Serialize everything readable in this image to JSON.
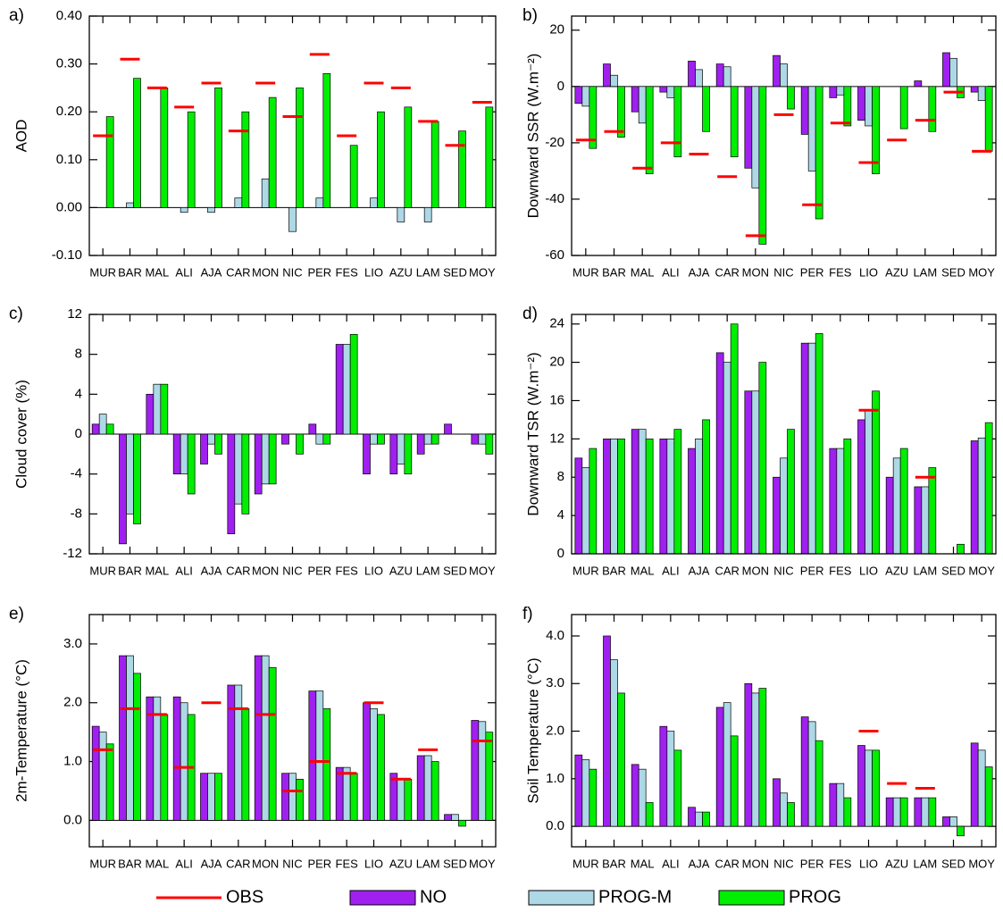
{
  "chart_data": [
    {
      "type": "bar",
      "label": "a)",
      "y_label": "AOD",
      "categories": [
        "MUR",
        "BAR",
        "MAL",
        "ALI",
        "AJA",
        "CAR",
        "MON",
        "NIC",
        "PER",
        "FES",
        "LIO",
        "AZU",
        "LAM",
        "SED",
        "MOY"
      ],
      "ylim": [
        -0.1,
        0.4
      ],
      "yticks": [
        {
          "value": -0.1,
          "label": "-0.10"
        },
        {
          "value": 0,
          "label": "0.00"
        },
        {
          "value": 0.1,
          "label": "0.10"
        },
        {
          "value": 0.2,
          "label": "0.20"
        },
        {
          "value": 0.3,
          "label": "0.30"
        },
        {
          "value": 0.4,
          "label": "0.40"
        }
      ],
      "series": [
        {
          "name": "OBS",
          "color": "#ff0000",
          "mark": "dash",
          "values": [
            0.15,
            0.31,
            0.25,
            0.21,
            0.26,
            0.16,
            0.26,
            0.19,
            0.32,
            0.15,
            0.26,
            0.25,
            0.18,
            0.13,
            0.22
          ]
        },
        {
          "name": "NO",
          "color": "#a020f0",
          "mark": "bar",
          "values": [
            null,
            null,
            null,
            null,
            null,
            null,
            null,
            null,
            null,
            null,
            null,
            null,
            null,
            null,
            null
          ]
        },
        {
          "name": "PROG-M",
          "color": "#add8e6",
          "mark": "bar",
          "values": [
            null,
            0.01,
            null,
            -0.01,
            -0.01,
            0.02,
            0.06,
            -0.05,
            0.02,
            null,
            0.02,
            -0.03,
            -0.03,
            null,
            null
          ]
        },
        {
          "name": "PROG",
          "color": "#00ee00",
          "mark": "bar",
          "values": [
            0.19,
            0.27,
            0.25,
            0.2,
            0.25,
            0.2,
            0.23,
            0.25,
            0.28,
            0.13,
            0.2,
            0.21,
            0.18,
            0.16,
            0.21
          ]
        }
      ]
    },
    {
      "type": "bar",
      "label": "b)",
      "y_label": "Downward SSR (W.m⁻²)",
      "categories": [
        "MUR",
        "BAR",
        "MAL",
        "ALI",
        "AJA",
        "CAR",
        "MON",
        "NIC",
        "PER",
        "FES",
        "LIO",
        "AZU",
        "LAM",
        "SED",
        "MOY"
      ],
      "ylim": [
        -60,
        25
      ],
      "yticks": [
        -60,
        -40,
        -20,
        0,
        20
      ],
      "series": [
        {
          "name": "OBS",
          "color": "#ff0000",
          "mark": "dash",
          "values": [
            -19,
            -16,
            -29,
            -20,
            -24,
            -32,
            -53,
            -10,
            -42,
            -13,
            -27,
            -19,
            -12,
            -2,
            -23
          ]
        },
        {
          "name": "NO",
          "color": "#a020f0",
          "mark": "bar",
          "values": [
            -6,
            8,
            -9,
            -2,
            9,
            8,
            -29,
            11,
            -17,
            -4,
            -12,
            null,
            2,
            12,
            -2
          ]
        },
        {
          "name": "PROG-M",
          "color": "#add8e6",
          "mark": "bar",
          "values": [
            -7,
            4,
            -13,
            -4,
            6,
            7,
            -36,
            8,
            -30,
            -3,
            -14,
            null,
            null,
            10,
            -5
          ]
        },
        {
          "name": "PROG",
          "color": "#00ee00",
          "mark": "bar",
          "values": [
            -22,
            -18,
            -31,
            -25,
            -16,
            -25,
            -56,
            -8,
            -47,
            -14,
            -31,
            -15,
            -16,
            -4,
            -23
          ]
        }
      ]
    },
    {
      "type": "bar",
      "label": "c)",
      "y_label": "Cloud cover (%)",
      "categories": [
        "MUR",
        "BAR",
        "MAL",
        "ALI",
        "AJA",
        "CAR",
        "MON",
        "NIC",
        "PER",
        "FES",
        "LIO",
        "AZU",
        "LAM",
        "SED",
        "MOY"
      ],
      "ylim": [
        -12,
        12
      ],
      "yticks": [
        -12,
        -8,
        -4,
        0,
        4,
        8,
        12
      ],
      "series": [
        {
          "name": "NO",
          "color": "#a020f0",
          "mark": "bar",
          "values": [
            1,
            -11,
            4,
            -4,
            -3,
            -10,
            -6,
            -1,
            1,
            9,
            -4,
            -4,
            -2,
            1,
            -1
          ]
        },
        {
          "name": "PROG-M",
          "color": "#add8e6",
          "mark": "bar",
          "values": [
            2,
            -8,
            5,
            -4,
            -1,
            -7,
            -5,
            null,
            -1,
            9,
            -1,
            -3,
            -1,
            null,
            -1
          ]
        },
        {
          "name": "PROG",
          "color": "#00ee00",
          "mark": "bar",
          "values": [
            1,
            -9,
            5,
            -6,
            -2,
            -8,
            -5,
            -2,
            -1,
            10,
            -1,
            -4,
            -1,
            null,
            -2
          ]
        }
      ]
    },
    {
      "type": "bar",
      "label": "d)",
      "y_label": "Downward TSR (W.m⁻²)",
      "categories": [
        "MUR",
        "BAR",
        "MAL",
        "ALI",
        "AJA",
        "CAR",
        "MON",
        "NIC",
        "PER",
        "FES",
        "LIO",
        "AZU",
        "LAM",
        "SED",
        "MOY"
      ],
      "ylim": [
        0,
        25
      ],
      "yticks": [
        0,
        4,
        8,
        12,
        16,
        20,
        24
      ],
      "series": [
        {
          "name": "OBS",
          "color": "#ff0000",
          "mark": "dash",
          "values": [
            null,
            null,
            null,
            null,
            null,
            null,
            null,
            null,
            null,
            null,
            15,
            null,
            8,
            null,
            null
          ]
        },
        {
          "name": "NO",
          "color": "#a020f0",
          "mark": "bar",
          "values": [
            10,
            12,
            13,
            12,
            11,
            21,
            17,
            8,
            22,
            11,
            14,
            8,
            7,
            null,
            11.8
          ]
        },
        {
          "name": "PROG-M",
          "color": "#add8e6",
          "mark": "bar",
          "values": [
            9,
            12,
            13,
            12,
            12,
            20,
            17,
            10,
            22,
            11,
            15,
            10,
            7,
            null,
            12.1
          ]
        },
        {
          "name": "PROG",
          "color": "#00ee00",
          "mark": "bar",
          "values": [
            11,
            12,
            12,
            13,
            14,
            24,
            20,
            13,
            23,
            12,
            17,
            11,
            9,
            1,
            13.7
          ]
        }
      ]
    },
    {
      "type": "bar",
      "label": "e)",
      "y_label": "2m-Temperature (°C)",
      "categories": [
        "MUR",
        "BAR",
        "MAL",
        "ALI",
        "AJA",
        "CAR",
        "MON",
        "NIC",
        "PER",
        "FES",
        "LIO",
        "AZU",
        "LAM",
        "SED",
        "MOY"
      ],
      "ylim": [
        -0.45,
        3.5
      ],
      "yticks": [
        {
          "value": 0,
          "label": "0.0"
        },
        {
          "value": 1,
          "label": "1.0"
        },
        {
          "value": 2,
          "label": "2.0"
        },
        {
          "value": 3,
          "label": "3.0"
        }
      ],
      "series": [
        {
          "name": "OBS",
          "color": "#ff0000",
          "mark": "dash",
          "values": [
            1.2,
            1.9,
            1.8,
            0.9,
            2.0,
            1.9,
            1.8,
            0.5,
            1.0,
            0.8,
            2.0,
            0.7,
            1.2,
            null,
            1.35
          ]
        },
        {
          "name": "NO",
          "color": "#a020f0",
          "mark": "bar",
          "values": [
            1.6,
            2.8,
            2.1,
            2.1,
            0.8,
            2.3,
            2.8,
            0.8,
            2.2,
            0.9,
            2.0,
            0.8,
            1.1,
            0.1,
            1.7
          ]
        },
        {
          "name": "PROG-M",
          "color": "#add8e6",
          "mark": "bar",
          "values": [
            1.5,
            2.8,
            2.1,
            2.0,
            0.8,
            2.3,
            2.8,
            0.8,
            2.2,
            0.9,
            1.9,
            0.7,
            1.1,
            0.1,
            1.68
          ]
        },
        {
          "name": "PROG",
          "color": "#00ee00",
          "mark": "bar",
          "values": [
            1.3,
            2.5,
            1.8,
            1.8,
            0.8,
            1.9,
            2.6,
            0.7,
            1.9,
            0.8,
            1.8,
            0.7,
            1.0,
            -0.1,
            1.5
          ]
        }
      ]
    },
    {
      "type": "bar",
      "label": "f)",
      "y_label": "Soil Temperature (°C)",
      "categories": [
        "MUR",
        "BAR",
        "MAL",
        "ALI",
        "AJA",
        "CAR",
        "MON",
        "NIC",
        "PER",
        "FES",
        "LIO",
        "AZU",
        "LAM",
        "SED",
        "MOY"
      ],
      "ylim": [
        -0.43,
        4.45
      ],
      "yticks": [
        {
          "value": 0,
          "label": "0.0"
        },
        {
          "value": 1,
          "label": "1.0"
        },
        {
          "value": 2,
          "label": "2.0"
        },
        {
          "value": 3,
          "label": "3.0"
        },
        {
          "value": 4,
          "label": "4.0"
        }
      ],
      "series": [
        {
          "name": "OBS",
          "color": "#ff0000",
          "mark": "dash",
          "values": [
            null,
            null,
            null,
            null,
            null,
            null,
            null,
            null,
            null,
            null,
            2.0,
            0.9,
            0.8,
            null,
            null
          ]
        },
        {
          "name": "NO",
          "color": "#a020f0",
          "mark": "bar",
          "values": [
            1.5,
            4.0,
            1.3,
            2.1,
            0.4,
            2.5,
            3.0,
            1.0,
            2.3,
            0.9,
            1.7,
            0.6,
            0.6,
            0.2,
            1.75
          ]
        },
        {
          "name": "PROG-M",
          "color": "#add8e6",
          "mark": "bar",
          "values": [
            1.4,
            3.5,
            1.2,
            2.0,
            0.3,
            2.6,
            2.8,
            0.7,
            2.2,
            0.9,
            1.6,
            0.6,
            0.6,
            0.2,
            1.6
          ]
        },
        {
          "name": "PROG",
          "color": "#00ee00",
          "mark": "bar",
          "values": [
            1.2,
            2.8,
            0.5,
            1.6,
            0.3,
            1.9,
            2.9,
            0.5,
            1.8,
            0.6,
            1.6,
            0.6,
            0.6,
            -0.2,
            1.25
          ]
        }
      ]
    }
  ]
}
